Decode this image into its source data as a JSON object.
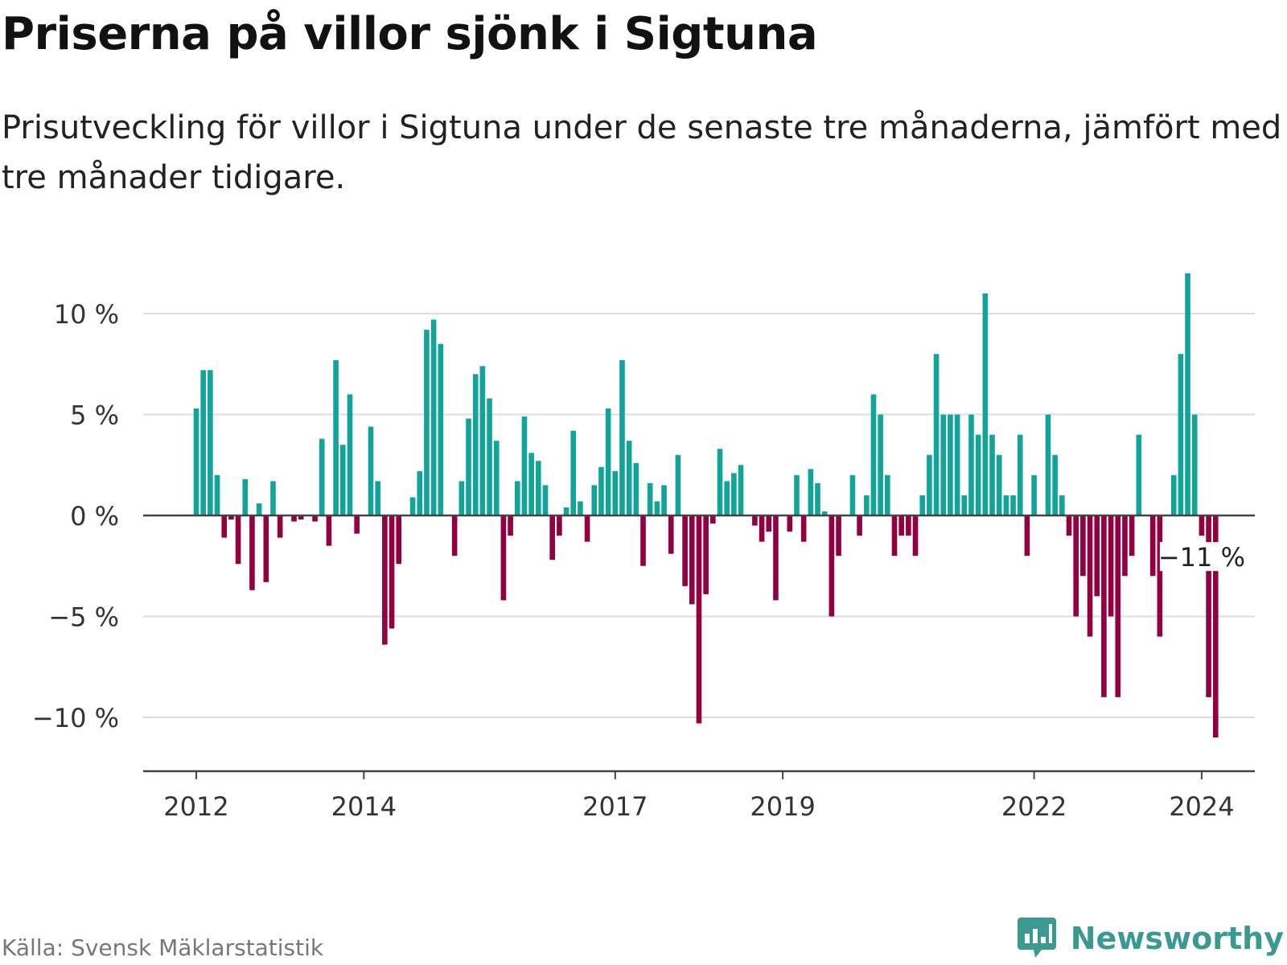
{
  "title": "Priserna på villor sjönk i Sigtuna",
  "subtitle": "Prisutveckling för villor i Sigtuna under de senaste tre månaderna, jämfört med tre månader tidigare.",
  "source": "Källa: Svensk Mäklarstatistik",
  "brand": "Newsworthy",
  "colors": {
    "positive": "#12a39a",
    "negative": "#930041",
    "grid": "#dddddd",
    "axis": "#444444",
    "text": "#333333",
    "brand": "#3a9a91"
  },
  "chart_data": {
    "type": "bar",
    "title": "Priserna på villor sjönk i Sigtuna",
    "xlabel": "",
    "ylabel": "",
    "ylim": [
      -13,
      12
    ],
    "yticks": [
      10,
      5,
      0,
      -5,
      -10
    ],
    "ytick_labels": [
      "10 %",
      "5 %",
      "0 %",
      "−5 %",
      "−10 %"
    ],
    "x_start": "2012-01",
    "frequency": "monthly",
    "xtick_labels": [
      {
        "label": "2012",
        "index": 0
      },
      {
        "label": "2014",
        "index": 24
      },
      {
        "label": "2017",
        "index": 60
      },
      {
        "label": "2019",
        "index": 84
      },
      {
        "label": "2022",
        "index": 120
      },
      {
        "label": "2024",
        "index": 144
      }
    ],
    "annotation": {
      "label": "−11 %",
      "index": 144
    },
    "values": [
      5.3,
      7.2,
      7.2,
      2.0,
      -1.1,
      -0.2,
      -2.4,
      1.8,
      -3.7,
      0.6,
      -3.3,
      1.7,
      -1.1,
      0.0,
      -0.3,
      -0.2,
      0.0,
      -0.3,
      3.8,
      -1.5,
      7.7,
      3.5,
      6.0,
      -0.9,
      0.0,
      4.4,
      1.7,
      -6.4,
      -5.6,
      -2.4,
      0.0,
      0.9,
      2.2,
      9.2,
      9.7,
      8.5,
      0.0,
      -2.0,
      1.7,
      4.8,
      7.0,
      7.4,
      5.8,
      3.7,
      -4.2,
      -1.0,
      1.7,
      4.9,
      3.1,
      2.7,
      1.5,
      -2.2,
      -1.0,
      0.4,
      4.2,
      0.7,
      -1.3,
      1.5,
      2.4,
      5.3,
      2.2,
      7.7,
      3.7,
      2.6,
      -2.5,
      1.6,
      0.7,
      1.5,
      -1.9,
      3.0,
      -3.5,
      -4.4,
      -10.3,
      -3.9,
      -0.4,
      3.3,
      1.7,
      2.1,
      2.5,
      0.0,
      -0.5,
      -1.3,
      -0.8,
      -4.2,
      0.0,
      -0.8,
      2.0,
      -1.3,
      2.3,
      1.6,
      0.2,
      -5.0,
      -2.0,
      0.0,
      2.0,
      -1.0,
      1.0,
      6.0,
      5.0,
      2.0,
      -2.0,
      -1.0,
      -1.0,
      -2.0,
      1.0,
      3.0,
      8.0,
      5.0,
      5.0,
      5.0,
      1.0,
      5.0,
      4.0,
      11.0,
      4.0,
      3.0,
      1.0,
      1.0,
      4.0,
      -2.0,
      2.0,
      0.0,
      5.0,
      3.0,
      1.0,
      -1.0,
      -5.0,
      -3.0,
      -6.0,
      -4.0,
      -9.0,
      -5.0,
      -9.0,
      -3.0,
      -2.0,
      4.0,
      0.0,
      -3.0,
      -6.0,
      0.0,
      2.0,
      8.0,
      12.0,
      5.0,
      -1.0,
      -9.0,
      -11.0
    ]
  }
}
